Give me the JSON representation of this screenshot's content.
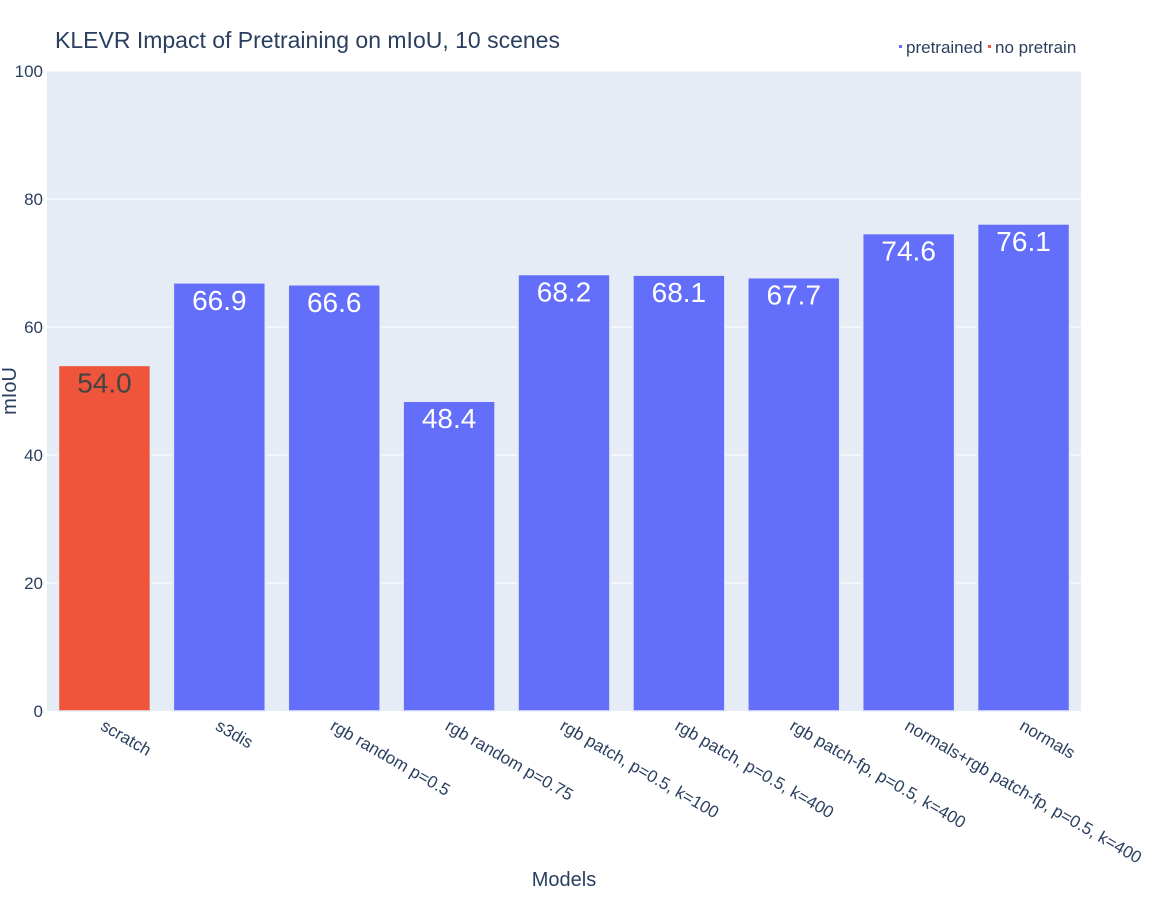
{
  "chart_data": {
    "type": "bar",
    "title": "KLEVR Impact of Pretraining on mIoU, 10 scenes",
    "xlabel": "Models",
    "ylabel": "mIoU",
    "ylim": [
      0,
      100
    ],
    "yticks": [
      0,
      20,
      40,
      60,
      80,
      100
    ],
    "grid": true,
    "legend_position": "top-right",
    "categories": [
      "scratch",
      "s3dis",
      "rgb random p=0.5",
      "rgb random p=0.75",
      "rgb patch, p=0.5, k=100",
      "rgb patch, p=0.5, k=400",
      "rgb patch-fp, p=0.5, k=400",
      "normals+rgb patch-fp, p=0.5, k=400",
      "normals"
    ],
    "values": [
      54.0,
      66.9,
      66.6,
      48.4,
      68.2,
      68.1,
      67.7,
      74.6,
      76.1
    ],
    "data_labels": [
      "54.0",
      "66.9",
      "66.6",
      "48.4",
      "68.2",
      "68.1",
      "67.7",
      "74.6",
      "76.1"
    ],
    "groups": [
      "no pretrain",
      "pretrained",
      "pretrained",
      "pretrained",
      "pretrained",
      "pretrained",
      "pretrained",
      "pretrained",
      "pretrained"
    ],
    "legend": [
      {
        "name": "pretrained",
        "color": "#636efa"
      },
      {
        "name": "no pretrain",
        "color": "#ef553b"
      }
    ],
    "colors": {
      "pretrained": "#636efa",
      "no pretrain": "#ef553b",
      "plot_bg": "#e5ecf6",
      "grid": "#ffffff",
      "text": "#2a3f5f"
    }
  }
}
